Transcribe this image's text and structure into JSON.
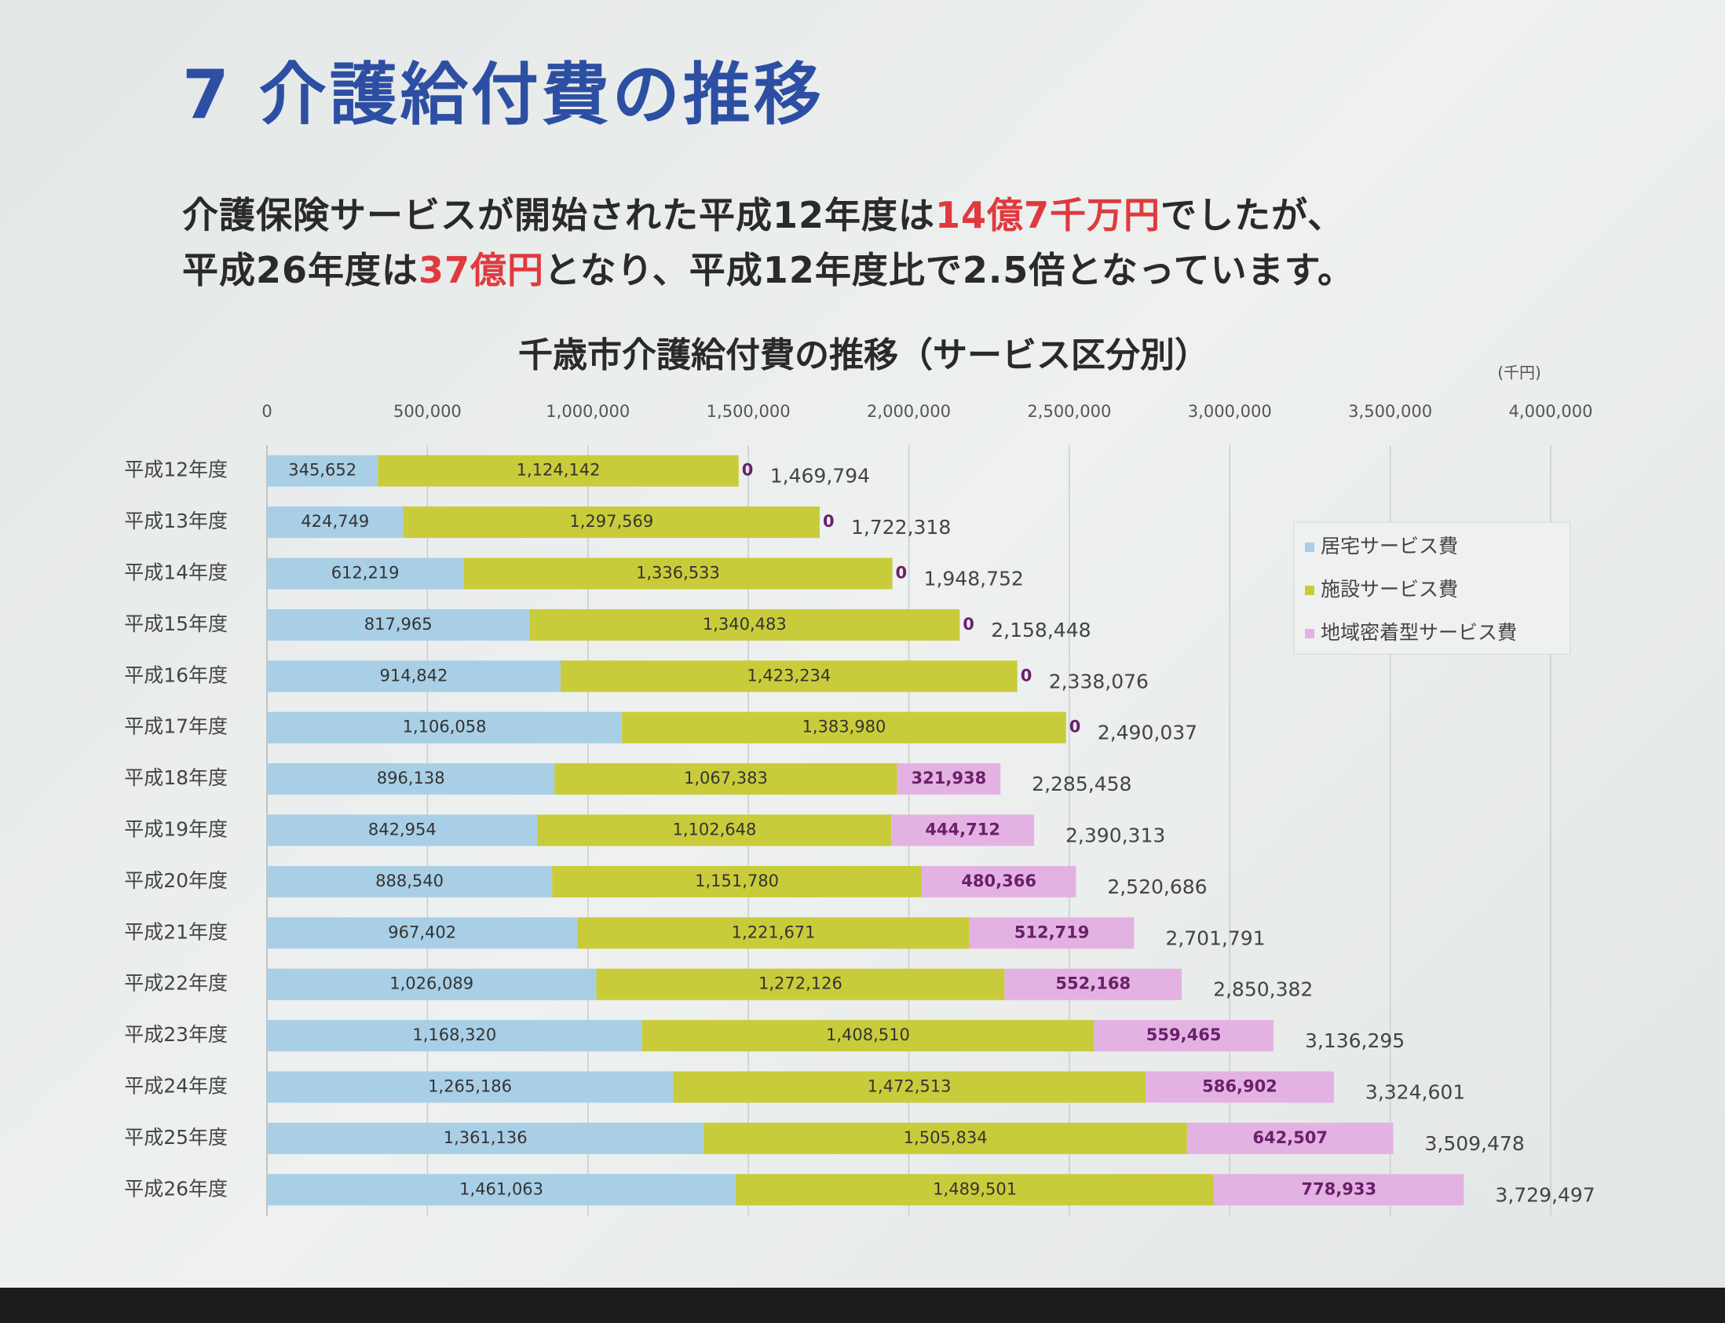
{
  "header": {
    "title": "7 介護給付費の推移",
    "intro": [
      [
        "介護保険サービスが開始された平成12年度は",
        "14億7千万円",
        "でしたが、"
      ],
      [
        "平成26年度は",
        "37億円",
        "となり、平成12年度比で2.5倍となっています。"
      ]
    ]
  },
  "chart_data": {
    "type": "stacked-barh",
    "title": "千歳市介護給付費の推移（サービス区分別）",
    "unit": "(千円)",
    "categories": [
      "平成12年度",
      "平成13年度",
      "平成14年度",
      "平成15年度",
      "平成16年度",
      "平成17年度",
      "平成18年度",
      "平成19年度",
      "平成20年度",
      "平成21年度",
      "平成22年度",
      "平成23年度",
      "平成24年度",
      "平成25年度",
      "平成26年度"
    ],
    "series": [
      {
        "name": "居宅サービス費",
        "color": "#a9cfe6",
        "values": [
          345652,
          424749,
          612219,
          817965,
          914842,
          1106058,
          896138,
          842954,
          888540,
          967402,
          1026089,
          1168320,
          1265186,
          1361136,
          1461063
        ],
        "value_labels": [
          "345,652",
          "424,749",
          "612,219",
          "817,965",
          "914,842",
          "1,106,058",
          "896,138",
          "842,954",
          "888,540",
          "967,402",
          "1,026,089",
          "1,168,320",
          "1,265,186",
          "1,361,136",
          "1,461,063"
        ]
      },
      {
        "name": "施設サービス費",
        "color": "#c9cc3a",
        "values": [
          1124142,
          1297569,
          1336533,
          1340483,
          1423234,
          1383980,
          1067383,
          1102648,
          1151780,
          1221671,
          1272126,
          1408510,
          1472513,
          1505834,
          1489501
        ],
        "value_labels": [
          "1,124,142",
          "1,297,569",
          "1,336,533",
          "1,340,483",
          "1,423,234",
          "1,383,980",
          "1,067,383",
          "1,102,648",
          "1,151,780",
          "1,221,671",
          "1,272,126",
          "1,408,510",
          "1,472,513",
          "1,505,834",
          "1,489,501"
        ]
      },
      {
        "name": "地域密着型サービス費",
        "color": "#e4b2e2",
        "values": [
          0,
          0,
          0,
          0,
          0,
          0,
          321938,
          444712,
          480366,
          512719,
          552168,
          559465,
          586902,
          642507,
          778933
        ],
        "value_labels": [
          "0",
          "0",
          "0",
          "0",
          "0",
          "0",
          "321,938",
          "444,712",
          "480,366",
          "512,719",
          "552,168",
          "559,465",
          "586,902",
          "642,507",
          "778,933"
        ]
      }
    ],
    "totals": [
      1469794,
      1722318,
      1948752,
      2158448,
      2338076,
      2490037,
      2285458,
      2390313,
      2520686,
      2701791,
      2850382,
      3136295,
      3324601,
      3509478,
      3729497
    ],
    "total_labels": [
      "1,469,794",
      "1,722,318",
      "1,948,752",
      "2,158,448",
      "2,338,076",
      "2,490,037",
      "2,285,458",
      "2,390,313",
      "2,520,686",
      "2,701,791",
      "2,850,382",
      "3,136,295",
      "3,324,601",
      "3,509,478",
      "3,729,497"
    ],
    "xlim": [
      0,
      4000000
    ],
    "xticks": [
      0,
      {
        "value": 500000,
        "label": "500,000"
      },
      {
        "value": 1000000,
        "label": "1,000,000"
      },
      {
        "value": 1500000,
        "label": "1,500,000"
      },
      {
        "value": 2000000,
        "label": "2,000,000"
      },
      {
        "value": 2500000,
        "label": "2,500,000"
      },
      {
        "value": 3000000,
        "label": "3,000,000"
      },
      {
        "value": 3500000,
        "label": "3,500,000"
      },
      {
        "value": 4000000,
        "label": "4,000,000"
      }
    ],
    "grid": true,
    "legend": "right"
  }
}
